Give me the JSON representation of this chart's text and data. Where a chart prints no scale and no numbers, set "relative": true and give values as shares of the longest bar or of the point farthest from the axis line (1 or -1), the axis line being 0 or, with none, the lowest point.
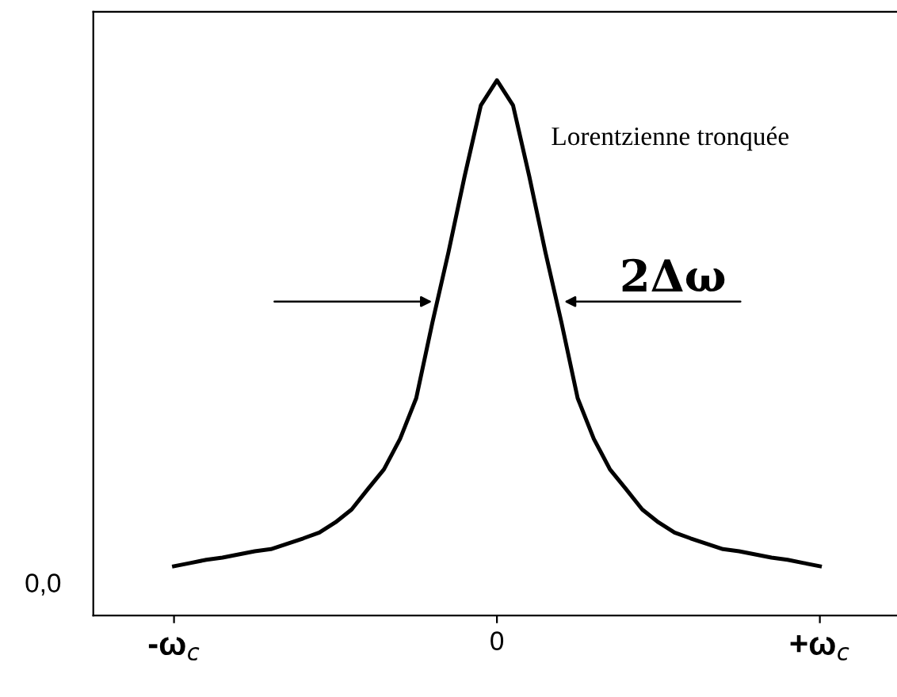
{
  "chart_data": {
    "type": "line",
    "relative": true,
    "categories": [
      "-ω$_{c}$",
      null,
      null,
      null,
      null,
      null,
      null,
      null,
      null,
      null,
      null,
      null,
      null,
      null,
      null,
      null,
      null,
      null,
      null,
      null,
      "0",
      null,
      null,
      null,
      null,
      null,
      null,
      null,
      null,
      null,
      null,
      null,
      null,
      null,
      null,
      null,
      null,
      null,
      null,
      null,
      "+ω$_{c}$"
    ],
    "series": [
      {
        "color": "#000000",
        "values": [
          0.092,
          0.098,
          0.104,
          0.108,
          0.114,
          0.12,
          0.124,
          0.134,
          0.144,
          0.155,
          0.174,
          0.198,
          0.236,
          0.273,
          0.33,
          0.406,
          0.547,
          0.679,
          0.821,
          0.953,
          1,
          0.953,
          0.821,
          0.679,
          0.547,
          0.406,
          0.33,
          0.273,
          0.236,
          0.198,
          0.174,
          0.155,
          0.144,
          0.134,
          0.124,
          0.12,
          0.114,
          0.108,
          0.104,
          0.098,
          0.092
        ]
      }
    ],
    "annotations": [
      "Lorentzienne tronquée",
      "2Δω",
      "0,0"
    ],
    "grid": false,
    "legend": false,
    "marker": "none",
    "line_style": "solid"
  }
}
